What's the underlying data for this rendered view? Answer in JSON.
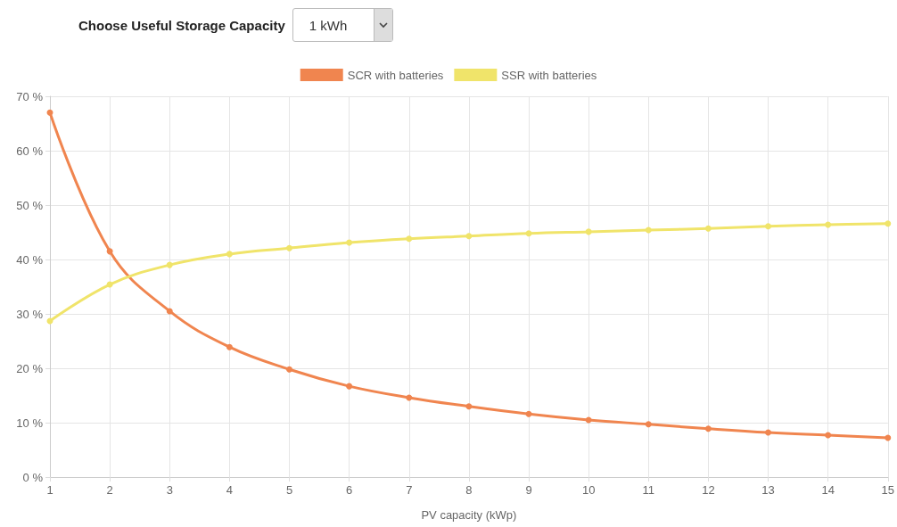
{
  "chart_data": {
    "type": "line",
    "title": "Choose Useful Storage Capacity",
    "annotations": [
      "1 kWh"
    ],
    "xlabel": "PV capacity (kWp)",
    "x": [
      1,
      2,
      3,
      4,
      5,
      6,
      7,
      8,
      9,
      10,
      11,
      12,
      13,
      14,
      15
    ],
    "xlim": [
      1,
      15
    ],
    "xticks": [
      1,
      2,
      3,
      4,
      5,
      6,
      7,
      8,
      9,
      10,
      11,
      12,
      13,
      14,
      15
    ],
    "ylim": [
      0,
      70
    ],
    "yticks": [
      {
        "value": 0,
        "label": "0 %"
      },
      {
        "value": 10,
        "label": "10 %"
      },
      {
        "value": 20,
        "label": "20 %"
      },
      {
        "value": 30,
        "label": "30 %"
      },
      {
        "value": 40,
        "label": "40 %"
      },
      {
        "value": 50,
        "label": "50 %"
      },
      {
        "value": 60,
        "label": "60 %"
      },
      {
        "value": 70,
        "label": "70 %"
      }
    ],
    "series": [
      {
        "name": "SCR with batteries",
        "color": "#f0854f",
        "values": [
          67.0,
          41.5,
          30.5,
          23.9,
          19.8,
          16.7,
          14.6,
          13.0,
          11.6,
          10.5,
          9.7,
          8.9,
          8.2,
          7.7,
          7.2
        ]
      },
      {
        "name": "SSR with batteries",
        "color": "#f0e46a",
        "values": [
          28.7,
          35.4,
          39.0,
          41.0,
          42.1,
          43.1,
          43.8,
          44.3,
          44.8,
          45.1,
          45.4,
          45.7,
          46.1,
          46.4,
          46.6
        ]
      }
    ],
    "grid": true,
    "legend": "top",
    "marker": "circle",
    "line_style": "solid"
  }
}
